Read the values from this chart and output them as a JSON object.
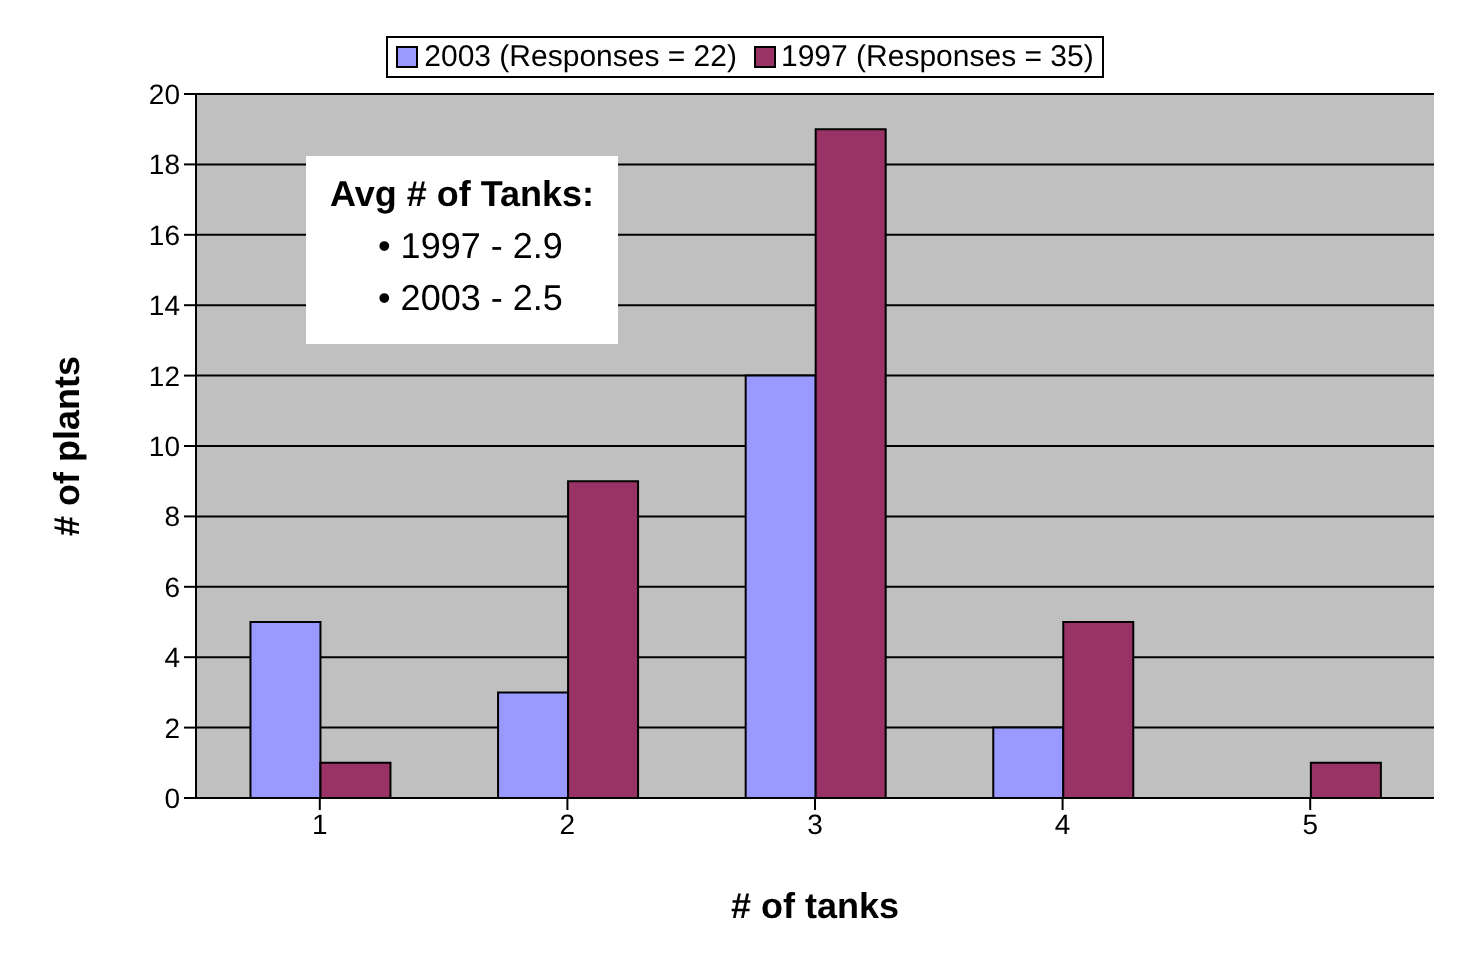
{
  "chart_data": {
    "type": "bar",
    "xlabel": "# of tanks",
    "ylabel": "# of plants",
    "categories": [
      "1",
      "2",
      "3",
      "4",
      "5"
    ],
    "series": [
      {
        "name": "2003 (Responses = 22)",
        "color": "#9999ff",
        "values": [
          5,
          3,
          12,
          2,
          0
        ]
      },
      {
        "name": "1997 (Responses = 35)",
        "color": "#993366",
        "values": [
          1,
          9,
          19,
          5,
          1
        ]
      }
    ],
    "ylim": [
      0,
      20
    ],
    "yticks": [
      0,
      2,
      4,
      6,
      8,
      10,
      12,
      14,
      16,
      18,
      20
    ],
    "grid": "y",
    "legend": "top",
    "annotations": [
      "Avg # of Tanks:",
      "• 1997 - 2.9",
      "• 2003 - 2.5"
    ]
  }
}
